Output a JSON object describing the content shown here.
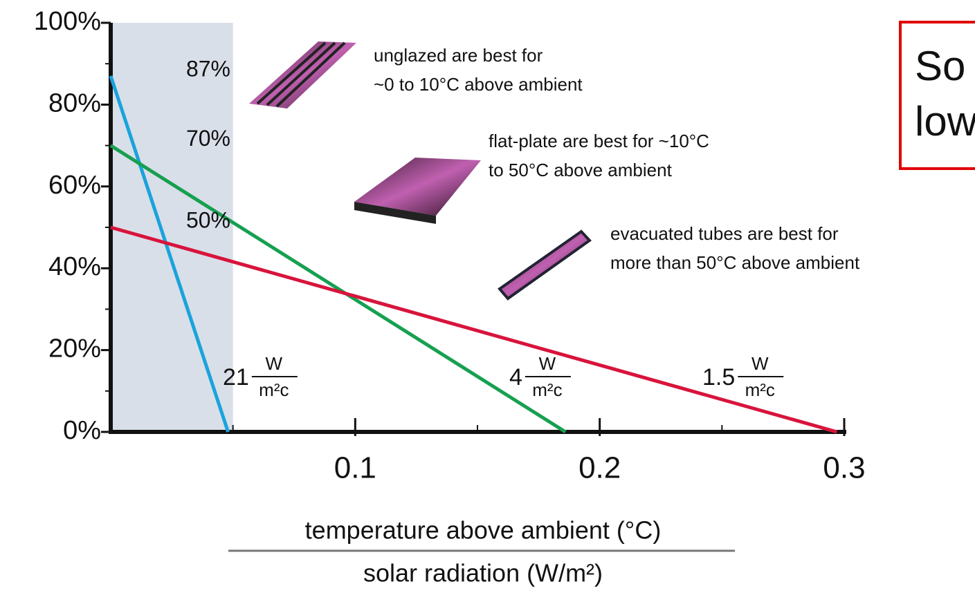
{
  "chart_data": {
    "type": "line",
    "xlim": [
      0,
      0.3
    ],
    "ylim": [
      0,
      100
    ],
    "xticks": [
      0.1,
      0.2,
      0.3
    ],
    "x_minor_ticks": [
      0.05,
      0.15,
      0.25
    ],
    "yticks": [
      {
        "value": 0,
        "label": "0%"
      },
      {
        "value": 20,
        "label": "20%"
      },
      {
        "value": 40,
        "label": "40%"
      },
      {
        "value": 60,
        "label": "60%"
      },
      {
        "value": 80,
        "label": "80%"
      },
      {
        "value": 100,
        "label": "100%"
      }
    ],
    "y_minor_ticks": [
      10,
      30,
      50,
      70,
      90
    ],
    "shaded_xrange": [
      0,
      0.05
    ],
    "xlabel_top": "temperature above ambient (°C)",
    "xlabel_bottom": "solar radiation (W/m²)",
    "series": [
      {
        "color": "#1aa3dc",
        "x": [
          0,
          0.048
        ],
        "values": [
          87,
          0
        ],
        "value_labels": [
          "87%",
          null
        ],
        "slope_label": {
          "number": "21",
          "unit_top": "W",
          "unit_bottom": "m²c"
        }
      },
      {
        "color": "#16a050",
        "x": [
          0,
          0.186
        ],
        "values": [
          70,
          0
        ],
        "value_labels": [
          "70%",
          null
        ],
        "slope_label": {
          "number": "4",
          "unit_top": "W",
          "unit_bottom": "m²c"
        }
      },
      {
        "color": "#d8143c",
        "x": [
          0,
          0.297
        ],
        "values": [
          50,
          0
        ],
        "value_labels": [
          "50%",
          null
        ],
        "slope_label": {
          "number": "1.5",
          "unit_top": "W",
          "unit_bottom": "m²c"
        }
      }
    ],
    "annotations": [
      [
        "unglazed are best for",
        "~0 to 10°C above ambient"
      ],
      [
        "flat-plate are best for ~10°C",
        "to 50°C above ambient"
      ],
      [
        "evacuated tubes are best for",
        "more than 50°C above ambient"
      ]
    ],
    "callout": [
      "So",
      "low"
    ]
  }
}
